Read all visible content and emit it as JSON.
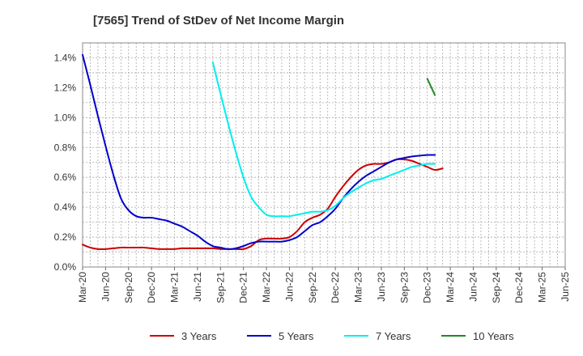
{
  "chart_data": {
    "type": "line",
    "title": "[7565]  Trend of StDev of Net Income Margin",
    "xlabel": "",
    "ylabel": "",
    "x_ticks": [
      "Mar-20",
      "Jun-20",
      "Sep-20",
      "Dec-20",
      "Mar-21",
      "Jun-21",
      "Sep-21",
      "Dec-21",
      "Mar-22",
      "Jun-22",
      "Sep-22",
      "Dec-22",
      "Mar-23",
      "Jun-23",
      "Sep-23",
      "Dec-23",
      "Mar-24",
      "Jun-24",
      "Sep-24",
      "Dec-24",
      "Mar-25",
      "Jun-25"
    ],
    "y_ticks": [
      "0.0%",
      "0.2%",
      "0.4%",
      "0.6%",
      "0.8%",
      "1.0%",
      "1.2%",
      "1.4%"
    ],
    "ylim": [
      0,
      1.5
    ],
    "grid": true,
    "legend_position": "bottom",
    "series": [
      {
        "name": "3 Years",
        "color": "#cc0000",
        "values": [
          [
            0,
            0.15
          ],
          [
            1,
            0.13
          ],
          [
            2,
            0.12
          ],
          [
            3,
            0.12
          ],
          [
            4,
            0.125
          ],
          [
            5,
            0.13
          ],
          [
            6,
            0.13
          ],
          [
            7,
            0.13
          ],
          [
            8,
            0.13
          ],
          [
            9,
            0.125
          ],
          [
            10,
            0.12
          ],
          [
            11,
            0.12
          ],
          [
            12,
            0.12
          ],
          [
            13,
            0.125
          ],
          [
            14,
            0.125
          ],
          [
            15,
            0.125
          ],
          [
            16,
            0.125
          ],
          [
            17,
            0.125
          ],
          [
            18,
            0.12
          ],
          [
            19,
            0.12
          ],
          [
            20,
            0.12
          ],
          [
            21,
            0.12
          ],
          [
            22,
            0.14
          ],
          [
            23,
            0.18
          ],
          [
            24,
            0.19
          ],
          [
            25,
            0.19
          ],
          [
            26,
            0.19
          ],
          [
            27,
            0.2
          ],
          [
            28,
            0.24
          ],
          [
            29,
            0.3
          ],
          [
            30,
            0.33
          ],
          [
            31,
            0.35
          ],
          [
            32,
            0.39
          ],
          [
            33,
            0.47
          ],
          [
            34,
            0.54
          ],
          [
            35,
            0.6
          ],
          [
            36,
            0.65
          ],
          [
            37,
            0.68
          ],
          [
            38,
            0.69
          ],
          [
            39,
            0.69
          ],
          [
            40,
            0.7
          ],
          [
            41,
            0.72
          ],
          [
            42,
            0.72
          ],
          [
            43,
            0.71
          ],
          [
            44,
            0.69
          ],
          [
            45,
            0.67
          ],
          [
            46,
            0.65
          ],
          [
            47,
            0.66
          ]
        ]
      },
      {
        "name": "5 Years",
        "color": "#0000cc",
        "values": [
          [
            0,
            1.42
          ],
          [
            1,
            1.22
          ],
          [
            2,
            1.01
          ],
          [
            3,
            0.81
          ],
          [
            4,
            0.62
          ],
          [
            5,
            0.46
          ],
          [
            6,
            0.38
          ],
          [
            7,
            0.34
          ],
          [
            8,
            0.33
          ],
          [
            9,
            0.33
          ],
          [
            10,
            0.32
          ],
          [
            11,
            0.31
          ],
          [
            12,
            0.29
          ],
          [
            13,
            0.27
          ],
          [
            14,
            0.24
          ],
          [
            15,
            0.21
          ],
          [
            16,
            0.17
          ],
          [
            17,
            0.14
          ],
          [
            18,
            0.13
          ],
          [
            19,
            0.12
          ],
          [
            20,
            0.125
          ],
          [
            21,
            0.14
          ],
          [
            22,
            0.16
          ],
          [
            23,
            0.17
          ],
          [
            24,
            0.17
          ],
          [
            25,
            0.17
          ],
          [
            26,
            0.17
          ],
          [
            27,
            0.18
          ],
          [
            28,
            0.2
          ],
          [
            29,
            0.24
          ],
          [
            30,
            0.28
          ],
          [
            31,
            0.3
          ],
          [
            32,
            0.34
          ],
          [
            33,
            0.39
          ],
          [
            34,
            0.46
          ],
          [
            35,
            0.52
          ],
          [
            36,
            0.57
          ],
          [
            37,
            0.61
          ],
          [
            38,
            0.64
          ],
          [
            39,
            0.67
          ],
          [
            40,
            0.7
          ],
          [
            41,
            0.72
          ],
          [
            42,
            0.73
          ],
          [
            43,
            0.74
          ],
          [
            44,
            0.745
          ],
          [
            45,
            0.75
          ],
          [
            46,
            0.75
          ]
        ]
      },
      {
        "name": "7 Years",
        "color": "#00eeee",
        "values": [
          [
            17,
            1.37
          ],
          [
            18,
            1.16
          ],
          [
            19,
            0.96
          ],
          [
            20,
            0.77
          ],
          [
            21,
            0.6
          ],
          [
            22,
            0.47
          ],
          [
            23,
            0.4
          ],
          [
            24,
            0.35
          ],
          [
            25,
            0.34
          ],
          [
            26,
            0.34
          ],
          [
            27,
            0.34
          ],
          [
            28,
            0.35
          ],
          [
            29,
            0.36
          ],
          [
            30,
            0.37
          ],
          [
            31,
            0.37
          ],
          [
            32,
            0.38
          ],
          [
            33,
            0.41
          ],
          [
            34,
            0.46
          ],
          [
            35,
            0.5
          ],
          [
            36,
            0.53
          ],
          [
            37,
            0.56
          ],
          [
            38,
            0.58
          ],
          [
            39,
            0.59
          ],
          [
            40,
            0.61
          ],
          [
            41,
            0.63
          ],
          [
            42,
            0.65
          ],
          [
            43,
            0.67
          ],
          [
            44,
            0.68
          ],
          [
            45,
            0.69
          ],
          [
            46,
            0.69
          ]
        ]
      },
      {
        "name": "10 Years",
        "color": "#228822",
        "values": [
          [
            45,
            1.26
          ],
          [
            46,
            1.15
          ]
        ]
      }
    ]
  }
}
